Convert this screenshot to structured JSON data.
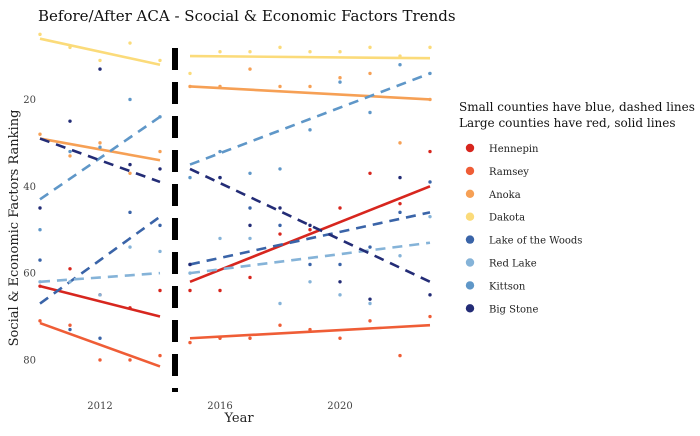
{
  "chart_data": {
    "type": "scatter",
    "title": "Before/After ACA - Scocial & Economic Factors Trends",
    "xlabel": "Year",
    "ylabel": "Social & Economic Factors Ranking",
    "xlim": [
      2010,
      2023
    ],
    "ylim": [
      86,
      4
    ],
    "y_reversed": true,
    "x_ticks": [
      2012,
      2016,
      2020
    ],
    "y_ticks": [
      20,
      40,
      60,
      80
    ],
    "aca_divider_year": 2014.5,
    "grid": false,
    "legend_position": "right",
    "legend_title_lines": [
      "Small counties have blue, dashed lines",
      "Large counties have red, solid lines"
    ],
    "series": [
      {
        "name": "Hennepin",
        "color": "#d7261e",
        "dash": false,
        "points": [
          [
            2010,
            63
          ],
          [
            2011,
            59
          ],
          [
            2012,
            65
          ],
          [
            2013,
            68
          ],
          [
            2014,
            64
          ],
          [
            2015,
            64
          ],
          [
            2016,
            64
          ],
          [
            2017,
            61
          ],
          [
            2018,
            51
          ],
          [
            2019,
            50
          ],
          [
            2020,
            45
          ],
          [
            2021,
            37
          ],
          [
            2022,
            44
          ],
          [
            2023,
            32
          ]
        ],
        "pre_fit": [
          [
            2010,
            63
          ],
          [
            2014,
            70
          ]
        ],
        "post_fit": [
          [
            2015,
            62
          ],
          [
            2023,
            40
          ]
        ]
      },
      {
        "name": "Ramsey",
        "color": "#ef5d36",
        "dash": false,
        "points": [
          [
            2010,
            71
          ],
          [
            2011,
            72
          ],
          [
            2012,
            80
          ],
          [
            2013,
            80
          ],
          [
            2014,
            79
          ],
          [
            2015,
            76
          ],
          [
            2016,
            75
          ],
          [
            2017,
            75
          ],
          [
            2018,
            72
          ],
          [
            2019,
            73
          ],
          [
            2020,
            75
          ],
          [
            2021,
            71
          ],
          [
            2022,
            79
          ],
          [
            2023,
            70
          ]
        ],
        "pre_fit": [
          [
            2010,
            71.5
          ],
          [
            2014,
            81.5
          ]
        ],
        "post_fit": [
          [
            2015,
            75
          ],
          [
            2023,
            72
          ]
        ]
      },
      {
        "name": "Anoka",
        "color": "#f6a055",
        "dash": false,
        "points": [
          [
            2010,
            28
          ],
          [
            2011,
            33
          ],
          [
            2012,
            30
          ],
          [
            2013,
            37
          ],
          [
            2014,
            32
          ],
          [
            2015,
            17
          ],
          [
            2016,
            17
          ],
          [
            2017,
            13
          ],
          [
            2018,
            17
          ],
          [
            2019,
            17
          ],
          [
            2020,
            15
          ],
          [
            2021,
            14
          ],
          [
            2022,
            30
          ],
          [
            2023,
            20
          ]
        ],
        "pre_fit": [
          [
            2010,
            29
          ],
          [
            2014,
            34
          ]
        ],
        "post_fit": [
          [
            2015,
            17
          ],
          [
            2023,
            20
          ]
        ]
      },
      {
        "name": "Dakota",
        "color": "#fbdb7a",
        "dash": false,
        "points": [
          [
            2010,
            5
          ],
          [
            2011,
            8
          ],
          [
            2012,
            11
          ],
          [
            2013,
            7
          ],
          [
            2014,
            11
          ],
          [
            2015,
            14
          ],
          [
            2016,
            9
          ],
          [
            2017,
            9
          ],
          [
            2018,
            8
          ],
          [
            2019,
            9
          ],
          [
            2020,
            9
          ],
          [
            2021,
            8
          ],
          [
            2022,
            10
          ],
          [
            2023,
            8
          ]
        ],
        "pre_fit": [
          [
            2010,
            6
          ],
          [
            2014,
            12
          ]
        ],
        "post_fit": [
          [
            2015,
            10
          ],
          [
            2023,
            10.5
          ]
        ]
      },
      {
        "name": "Lake of the Woods",
        "color": "#3a64a8",
        "dash": true,
        "points": [
          [
            2010,
            57
          ],
          [
            2011,
            73
          ],
          [
            2012,
            75
          ],
          [
            2013,
            46
          ],
          [
            2014,
            49
          ],
          [
            2015,
            58
          ],
          [
            2016,
            38
          ],
          [
            2017,
            45
          ],
          [
            2018,
            49
          ],
          [
            2019,
            58
          ],
          [
            2020,
            58
          ],
          [
            2021,
            54
          ],
          [
            2022,
            46
          ],
          [
            2023,
            39
          ]
        ],
        "pre_fit": [
          [
            2010,
            67
          ],
          [
            2014,
            47
          ]
        ],
        "post_fit": [
          [
            2015,
            58
          ],
          [
            2023,
            46
          ]
        ]
      },
      {
        "name": "Red Lake",
        "color": "#85b3d8",
        "dash": true,
        "points": [
          [
            2010,
            62
          ],
          [
            2011,
            62
          ],
          [
            2012,
            65
          ],
          [
            2013,
            54
          ],
          [
            2014,
            55
          ],
          [
            2015,
            60
          ],
          [
            2016,
            52
          ],
          [
            2017,
            52
          ],
          [
            2018,
            67
          ],
          [
            2019,
            62
          ],
          [
            2020,
            65
          ],
          [
            2021,
            67
          ],
          [
            2022,
            56
          ],
          [
            2023,
            47
          ]
        ],
        "pre_fit": [
          [
            2010,
            62
          ],
          [
            2014,
            60
          ]
        ],
        "post_fit": [
          [
            2015,
            60
          ],
          [
            2023,
            53
          ]
        ]
      },
      {
        "name": "Kittson",
        "color": "#5f97c8",
        "dash": true,
        "points": [
          [
            2010,
            50
          ],
          [
            2011,
            32
          ],
          [
            2012,
            31
          ],
          [
            2013,
            20
          ],
          [
            2014,
            24
          ],
          [
            2015,
            38
          ],
          [
            2016,
            32
          ],
          [
            2017,
            37
          ],
          [
            2018,
            36
          ],
          [
            2019,
            27
          ],
          [
            2020,
            16
          ],
          [
            2021,
            23
          ],
          [
            2022,
            12
          ],
          [
            2023,
            14
          ]
        ],
        "pre_fit": [
          [
            2010,
            43
          ],
          [
            2014,
            24
          ]
        ],
        "post_fit": [
          [
            2015,
            35
          ],
          [
            2023,
            14
          ]
        ]
      },
      {
        "name": "Big Stone",
        "color": "#232c76",
        "dash": true,
        "points": [
          [
            2010,
            45
          ],
          [
            2011,
            25
          ],
          [
            2012,
            13
          ],
          [
            2013,
            35
          ],
          [
            2014,
            36
          ],
          [
            2015,
            58
          ],
          [
            2016,
            38
          ],
          [
            2017,
            49
          ],
          [
            2018,
            45
          ],
          [
            2019,
            49
          ],
          [
            2020,
            62
          ],
          [
            2021,
            66
          ],
          [
            2022,
            38
          ],
          [
            2023,
            65
          ]
        ],
        "pre_fit": [
          [
            2010,
            29
          ],
          [
            2014,
            39
          ]
        ],
        "post_fit": [
          [
            2015,
            36
          ],
          [
            2023,
            62
          ]
        ]
      }
    ]
  }
}
